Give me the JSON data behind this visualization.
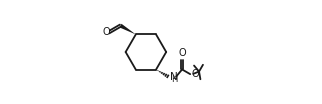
{
  "bg_color": "#ffffff",
  "line_color": "#1a1a1a",
  "lw": 1.3,
  "fig_width": 3.22,
  "fig_height": 1.04,
  "dpi": 100,
  "xlim": [
    0.0,
    1.0
  ],
  "ylim": [
    0.0,
    1.0
  ]
}
